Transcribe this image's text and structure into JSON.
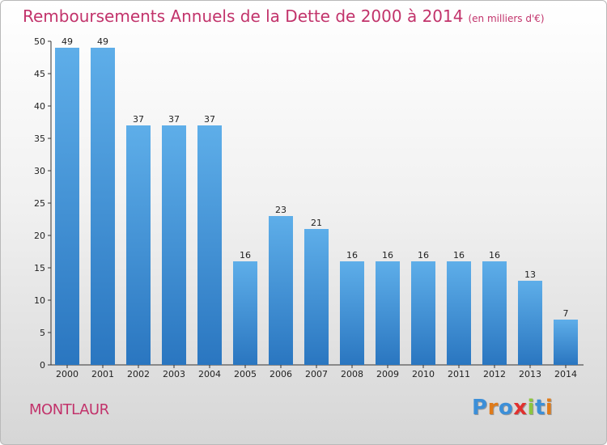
{
  "chart_data": {
    "type": "bar",
    "title": "Remboursements Annuels de la Dette de 2000 à 2014",
    "subtitle": "(en milliers d'€)",
    "categories": [
      "2000",
      "2001",
      "2002",
      "2003",
      "2004",
      "2005",
      "2006",
      "2007",
      "2008",
      "2009",
      "2010",
      "2011",
      "2012",
      "2013",
      "2014"
    ],
    "values": [
      49,
      49,
      37,
      37,
      37,
      16,
      23,
      21,
      16,
      16,
      16,
      16,
      16,
      13,
      7
    ],
    "ylim": [
      0,
      50
    ],
    "yticks": [
      0,
      5,
      10,
      15,
      20,
      25,
      30,
      35,
      40,
      45,
      50
    ],
    "grid": false,
    "bar_color": "#3d8fd8"
  },
  "footer": {
    "commune": "MONTLAUR",
    "logo_letters": [
      "P",
      "r",
      "o",
      "x",
      "i",
      "t",
      "i"
    ],
    "logo_colors": [
      "#3c8fd8",
      "#e07b1a",
      "#3c8fd8",
      "#e0312f",
      "#8cc63f",
      "#3c8fd8",
      "#e07b1a"
    ]
  },
  "colors": {
    "accent": "#c2336b"
  }
}
